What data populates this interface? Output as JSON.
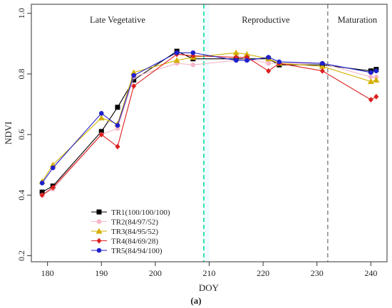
{
  "chart_data": {
    "type": "line",
    "xlabel": "DOY",
    "ylabel": "NDVI",
    "caption": "(a)",
    "xlim": [
      177,
      243
    ],
    "ylim": [
      0.18,
      1.03
    ],
    "x_ticks": [
      180,
      190,
      200,
      210,
      220,
      230,
      240
    ],
    "y_ticks": [
      0.2,
      0.4,
      0.6,
      0.8,
      1.0
    ],
    "y_tick_labels": [
      "0.2",
      "0.4",
      "0.6",
      "0.8",
      "1.0"
    ],
    "stages": [
      {
        "label": "Late Vegetative",
        "x_center": 193
      },
      {
        "label": "Reproductive",
        "x_center": 220.5
      },
      {
        "label": "Maturation",
        "x_center": 237.5
      }
    ],
    "stage_boundaries": [
      {
        "x": 209,
        "color": "#2ee6a8"
      },
      {
        "x": 232,
        "color": "#888888"
      }
    ],
    "legend_position": "bottom-left",
    "series": [
      {
        "name": "TR1(100/100/100)",
        "color": "#000000",
        "marker": "square",
        "x": [
          179,
          181,
          190,
          193,
          196,
          204,
          207,
          215,
          217,
          221,
          223,
          231,
          240,
          241
        ],
        "y": [
          0.41,
          0.43,
          0.61,
          0.69,
          0.78,
          0.875,
          0.85,
          0.85,
          0.85,
          0.85,
          0.83,
          0.83,
          0.81,
          0.815
        ]
      },
      {
        "name": "TR2(84/97/52)",
        "color": "#f4b8c8",
        "marker": "circle",
        "x": [
          179,
          181,
          190,
          193,
          196,
          204,
          207,
          215,
          217,
          221,
          223,
          231,
          240,
          241
        ],
        "y": [
          0.4,
          0.42,
          0.6,
          0.62,
          0.79,
          0.835,
          0.83,
          0.845,
          0.85,
          0.835,
          0.835,
          0.835,
          0.79,
          0.79
        ]
      },
      {
        "name": "TR3(84/95/52)",
        "color": "#d4b000",
        "marker": "triangle",
        "x": [
          179,
          181,
          190,
          193,
          196,
          204,
          207,
          215,
          217,
          221,
          223,
          231,
          240,
          241
        ],
        "y": [
          0.445,
          0.5,
          0.655,
          0.635,
          0.805,
          0.845,
          0.855,
          0.87,
          0.865,
          0.85,
          0.835,
          0.825,
          0.775,
          0.78
        ]
      },
      {
        "name": "TR4(84/69/28)",
        "color": "#dd2020",
        "marker": "diamond",
        "x": [
          179,
          181,
          190,
          193,
          196,
          204,
          207,
          215,
          217,
          221,
          223,
          231,
          240,
          241
        ],
        "y": [
          0.4,
          0.425,
          0.6,
          0.56,
          0.76,
          0.865,
          0.86,
          0.855,
          0.855,
          0.81,
          0.835,
          0.81,
          0.715,
          0.725
        ]
      },
      {
        "name": "TR5(84/94/100)",
        "color": "#2020cc",
        "marker": "circle",
        "x": [
          179,
          181,
          190,
          193,
          196,
          204,
          207,
          215,
          217,
          221,
          223,
          231,
          240,
          241
        ],
        "y": [
          0.44,
          0.49,
          0.67,
          0.63,
          0.795,
          0.87,
          0.87,
          0.845,
          0.845,
          0.855,
          0.84,
          0.835,
          0.805,
          0.81
        ]
      }
    ]
  }
}
